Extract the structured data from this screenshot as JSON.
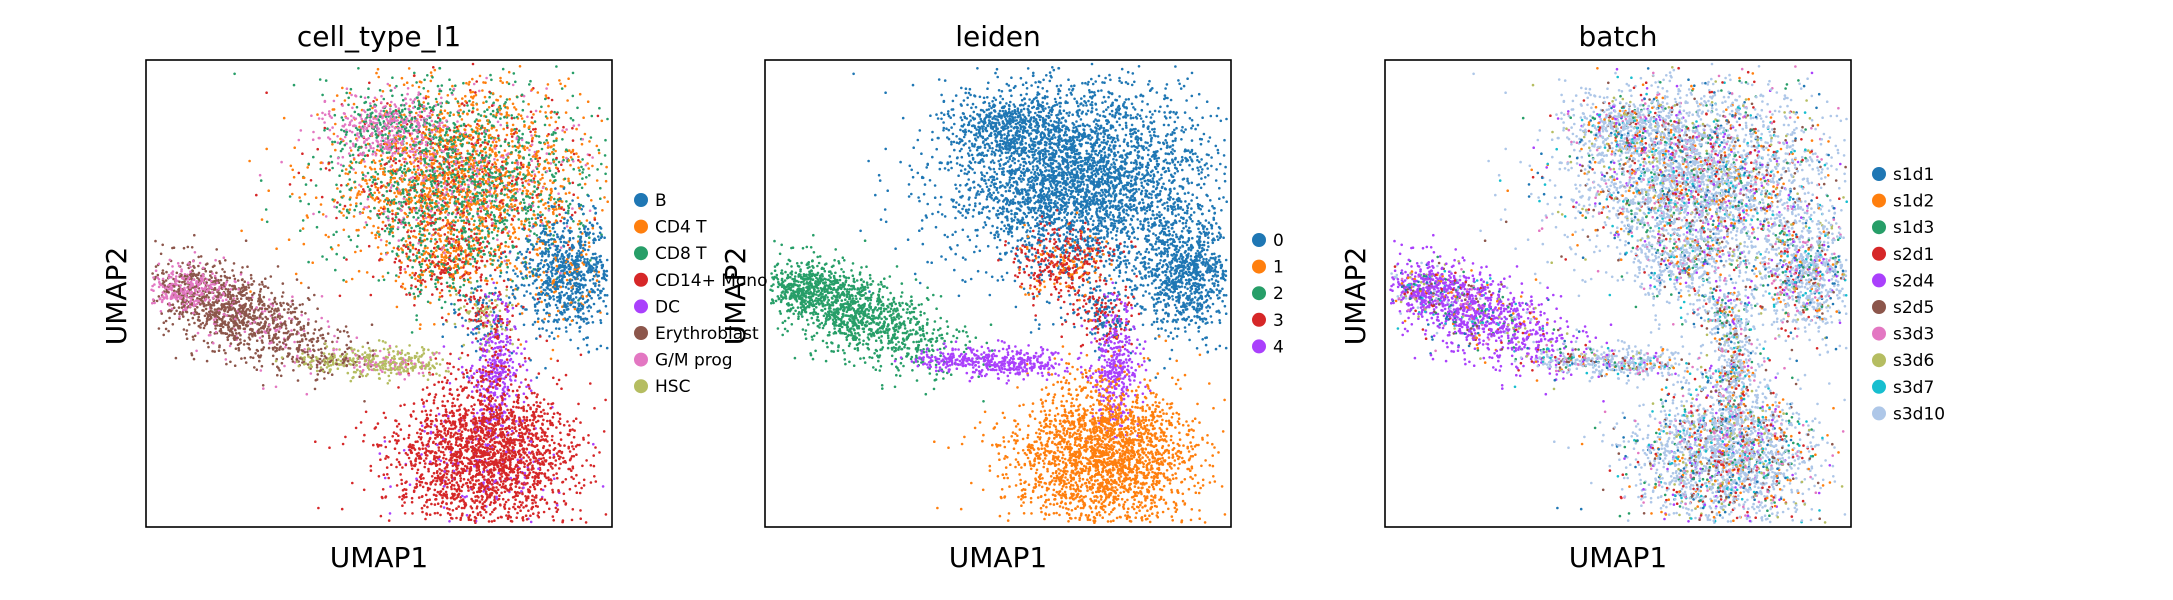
{
  "chart_data": [
    {
      "type": "scatter",
      "title": "cell_type_l1",
      "xlabel": "UMAP1",
      "ylabel": "UMAP2",
      "xticks": [],
      "yticks": [],
      "legend_position": "right",
      "categories": [
        "B",
        "CD4 T",
        "CD8 T",
        "CD14+ Mono",
        "DC",
        "Erythroblast",
        "G/M prog",
        "HSC"
      ],
      "colors": [
        "#1f77b4",
        "#ff7f0e",
        "#279e68",
        "#d62728",
        "#aa40fc",
        "#8c564b",
        "#e377c2",
        "#b5bd61"
      ]
    },
    {
      "type": "scatter",
      "title": "leiden",
      "xlabel": "UMAP1",
      "ylabel": "UMAP2",
      "xticks": [],
      "yticks": [],
      "legend_position": "right",
      "categories": [
        "0",
        "1",
        "2",
        "3",
        "4"
      ],
      "colors": [
        "#1f77b4",
        "#ff7f0e",
        "#279e68",
        "#d62728",
        "#aa40fc"
      ]
    },
    {
      "type": "scatter",
      "title": "batch",
      "xlabel": "UMAP1",
      "ylabel": "UMAP2",
      "xticks": [],
      "yticks": [],
      "legend_position": "right",
      "categories": [
        "s1d1",
        "s1d2",
        "s1d3",
        "s2d1",
        "s2d4",
        "s2d5",
        "s3d3",
        "s3d6",
        "s3d7",
        "s3d10"
      ],
      "colors": [
        "#1f77b4",
        "#ff7f0e",
        "#279e68",
        "#d62728",
        "#aa40fc",
        "#8c564b",
        "#e377c2",
        "#b5bd61",
        "#17becf",
        "#aec7e8"
      ]
    }
  ]
}
